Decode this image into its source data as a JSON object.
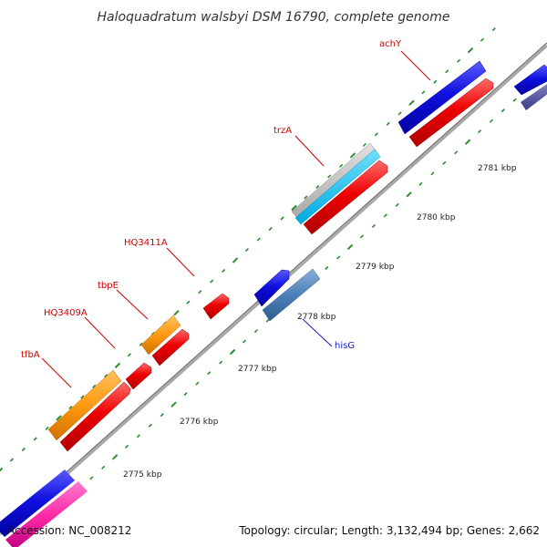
{
  "title": "Haloquadratum walsbyi DSM 16790, complete genome",
  "footer": {
    "accession": "Accession: NC_008212",
    "summary": "Topology: circular; Length: 3,132,494 bp; Genes: 2,662"
  },
  "colors": {
    "backbone": "#8c8c8c",
    "tick": "#2e8b2e",
    "label_red": "#cc0000",
    "label_blue": "#1a1acc"
  },
  "kbp_labels": [
    "2775 kbp",
    "2776 kbp",
    "2777 kbp",
    "2778 kbp",
    "2779 kbp",
    "2780 kbp",
    "2781 kbp"
  ],
  "gene_labels": [
    {
      "name": "tfbA",
      "color": "#cc0000"
    },
    {
      "name": "HQ3409A",
      "color": "#cc0000"
    },
    {
      "name": "tbpE",
      "color": "#cc0000"
    },
    {
      "name": "HQ3411A",
      "color": "#cc0000"
    },
    {
      "name": "trzA",
      "color": "#cc0000"
    },
    {
      "name": "achY",
      "color": "#cc0000"
    },
    {
      "name": "hisG",
      "color": "#1a1acc"
    }
  ]
}
